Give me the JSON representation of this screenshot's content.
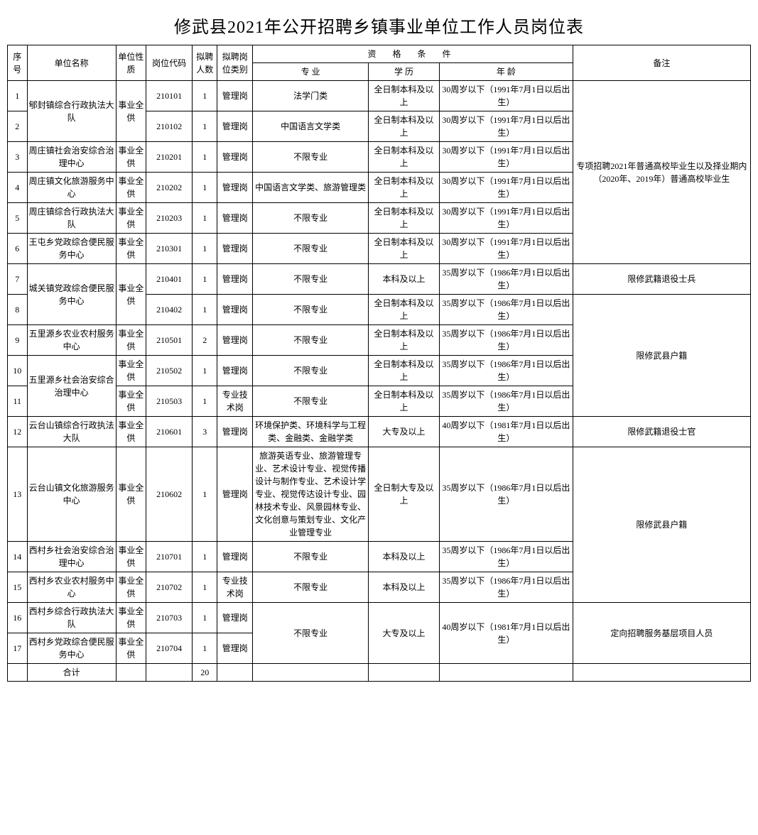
{
  "title": "修武县2021年公开招聘乡镇事业单位工作人员岗位表",
  "headers": {
    "seq": "序号",
    "unit": "单位名称",
    "nature": "单位性质",
    "code": "岗位代码",
    "count": "拟聘人数",
    "type": "拟聘岗位类别",
    "qual": "资 格 条 件",
    "major": "专 业",
    "edu": "学 历",
    "age": "年 龄",
    "remark": "备注"
  },
  "rows": {
    "r1": {
      "seq": "1",
      "unit": "郇封镇综合行政执法大队",
      "nature": "事业全供",
      "code": "210101",
      "count": "1",
      "type": "管理岗",
      "major": "法学门类",
      "edu": "全日制本科及以上",
      "age": "30周岁以下（1991年7月1日以后出生）"
    },
    "r2": {
      "seq": "2",
      "code": "210102",
      "count": "1",
      "type": "管理岗",
      "major": "中国语言文学类",
      "edu": "全日制本科及以上",
      "age": "30周岁以下（1991年7月1日以后出生）"
    },
    "r3": {
      "seq": "3",
      "unit": "周庄镇社会治安综合治理中心",
      "nature": "事业全供",
      "code": "210201",
      "count": "1",
      "type": "管理岗",
      "major": "不限专业",
      "edu": "全日制本科及以上",
      "age": "30周岁以下（1991年7月1日以后出生）"
    },
    "r4": {
      "seq": "4",
      "unit": "周庄镇文化旅游服务中心",
      "nature": "事业全供",
      "code": "210202",
      "count": "1",
      "type": "管理岗",
      "major": "中国语言文学类、旅游管理类",
      "edu": "全日制本科及以上",
      "age": "30周岁以下（1991年7月1日以后出生）"
    },
    "r5": {
      "seq": "5",
      "unit": "周庄镇综合行政执法大队",
      "nature": "事业全供",
      "code": "210203",
      "count": "1",
      "type": "管理岗",
      "major": "不限专业",
      "edu": "全日制本科及以上",
      "age": "30周岁以下（1991年7月1日以后出生）"
    },
    "r6": {
      "seq": "6",
      "unit": "王屯乡党政综合便民服务中心",
      "nature": "事业全供",
      "code": "210301",
      "count": "1",
      "type": "管理岗",
      "major": "不限专业",
      "edu": "全日制本科及以上",
      "age": "30周岁以下（1991年7月1日以后出生）"
    },
    "r7": {
      "seq": "7",
      "unit": "城关镇党政综合便民服务中心",
      "nature": "事业全供",
      "code": "210401",
      "count": "1",
      "type": "管理岗",
      "major": "不限专业",
      "edu": "本科及以上",
      "age": "35周岁以下（1986年7月1日以后出生）"
    },
    "r8": {
      "seq": "8",
      "code": "210402",
      "count": "1",
      "type": "管理岗",
      "major": "不限专业",
      "edu": "全日制本科及以上",
      "age": "35周岁以下（1986年7月1日以后出生）"
    },
    "r9": {
      "seq": "9",
      "unit": "五里源乡农业农村服务中心",
      "nature": "事业全供",
      "code": "210501",
      "count": "2",
      "type": "管理岗",
      "major": "不限专业",
      "edu": "全日制本科及以上",
      "age": "35周岁以下（1986年7月1日以后出生）"
    },
    "r10": {
      "seq": "10",
      "unit": "五里源乡社会治安综合治理中心",
      "nature": "事业全供",
      "code": "210502",
      "count": "1",
      "type": "管理岗",
      "major": "不限专业",
      "edu": "全日制本科及以上",
      "age": "35周岁以下（1986年7月1日以后出生）"
    },
    "r11": {
      "seq": "11",
      "nature": "事业全供",
      "code": "210503",
      "count": "1",
      "type": "专业技术岗",
      "major": "不限专业",
      "edu": "全日制本科及以上",
      "age": "35周岁以下（1986年7月1日以后出生）"
    },
    "r12": {
      "seq": "12",
      "unit": "云台山镇综合行政执法大队",
      "nature": "事业全供",
      "code": "210601",
      "count": "3",
      "type": "管理岗",
      "major": "环境保护类、环境科学与工程类、金融类、金融学类",
      "edu": "大专及以上",
      "age": "40周岁以下（1981年7月1日以后出生）"
    },
    "r13": {
      "seq": "13",
      "unit": "云台山镇文化旅游服务中心",
      "nature": "事业全供",
      "code": "210602",
      "count": "1",
      "type": "管理岗",
      "major": "旅游英语专业、旅游管理专业、艺术设计专业、视觉传播设计与制作专业、艺术设计学专业、视觉传达设计专业、园林技术专业、风景园林专业、文化创意与策划专业、文化产业管理专业",
      "edu": "全日制大专及以上",
      "age": "35周岁以下（1986年7月1日以后出生）"
    },
    "r14": {
      "seq": "14",
      "unit": "西村乡社会治安综合治理中心",
      "nature": "事业全供",
      "code": "210701",
      "count": "1",
      "type": "管理岗",
      "major": "不限专业",
      "edu": "本科及以上",
      "age": "35周岁以下（1986年7月1日以后出生）"
    },
    "r15": {
      "seq": "15",
      "unit": "西村乡农业农村服务中心",
      "nature": "事业全供",
      "code": "210702",
      "count": "1",
      "type": "专业技术岗",
      "major": "不限专业",
      "edu": "本科及以上",
      "age": "35周岁以下（1986年7月1日以后出生）"
    },
    "r16": {
      "seq": "16",
      "unit": "西村乡综合行政执法大队",
      "nature": "事业全供",
      "code": "210703",
      "count": "1",
      "type": "管理岗",
      "major": "不限专业",
      "edu": "大专及以上",
      "age": "40周岁以下（1981年7月1日以后出生）"
    },
    "r17": {
      "seq": "17",
      "unit": "西村乡党政综合便民服务中心",
      "nature": "事业全供",
      "code": "210704",
      "count": "1",
      "type": "管理岗"
    }
  },
  "remarks": {
    "rm1": "专项招聘2021年普通高校毕业生以及择业期内（2020年、2019年）普通高校毕业生",
    "rm2": "限修武籍退役士兵",
    "rm3": "限修武县户籍",
    "rm4": "限修武籍退役士官",
    "rm5": "限修武县户籍",
    "rm6": "定向招聘服务基层项目人员"
  },
  "total": {
    "label": "合计",
    "count": "20"
  }
}
